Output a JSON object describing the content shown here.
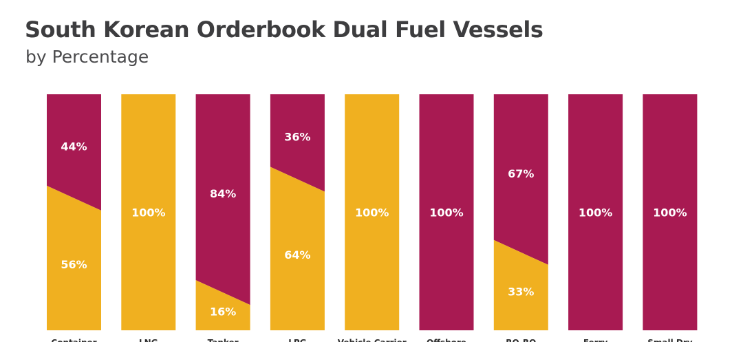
{
  "header": {
    "title": "South Korean Orderbook Dual Fuel Vessels",
    "subtitle": "by Percentage"
  },
  "colors": {
    "primary_series": "#f0b020",
    "secondary_series": "#a81a52",
    "label_text": "#ffffff"
  },
  "chart_data": {
    "type": "bar",
    "stacked": true,
    "percent": true,
    "title": "South Korean Orderbook Dual Fuel Vessels",
    "subtitle": "by Percentage",
    "categories": [
      "Container",
      "LNG",
      "Tanker",
      "LPG",
      "Vehicle Carrier",
      "Offshore",
      "RO-RO",
      "Ferry",
      "Small Dry"
    ],
    "series": [
      {
        "color": "#f0b020",
        "values": [
          56,
          100,
          16,
          64,
          100,
          0,
          33,
          0,
          0
        ],
        "labels": [
          "56%",
          "100%",
          "16%",
          "64%",
          "100%",
          "",
          "33%",
          "",
          ""
        ]
      },
      {
        "color": "#a81a52",
        "values": [
          44,
          0,
          84,
          36,
          0,
          100,
          67,
          100,
          100
        ],
        "labels": [
          "44%",
          "",
          "84%",
          "36%",
          "",
          "100%",
          "67%",
          "100%",
          "100%"
        ]
      }
    ],
    "ylim": [
      0,
      100
    ],
    "grid": false,
    "legend": "none"
  }
}
